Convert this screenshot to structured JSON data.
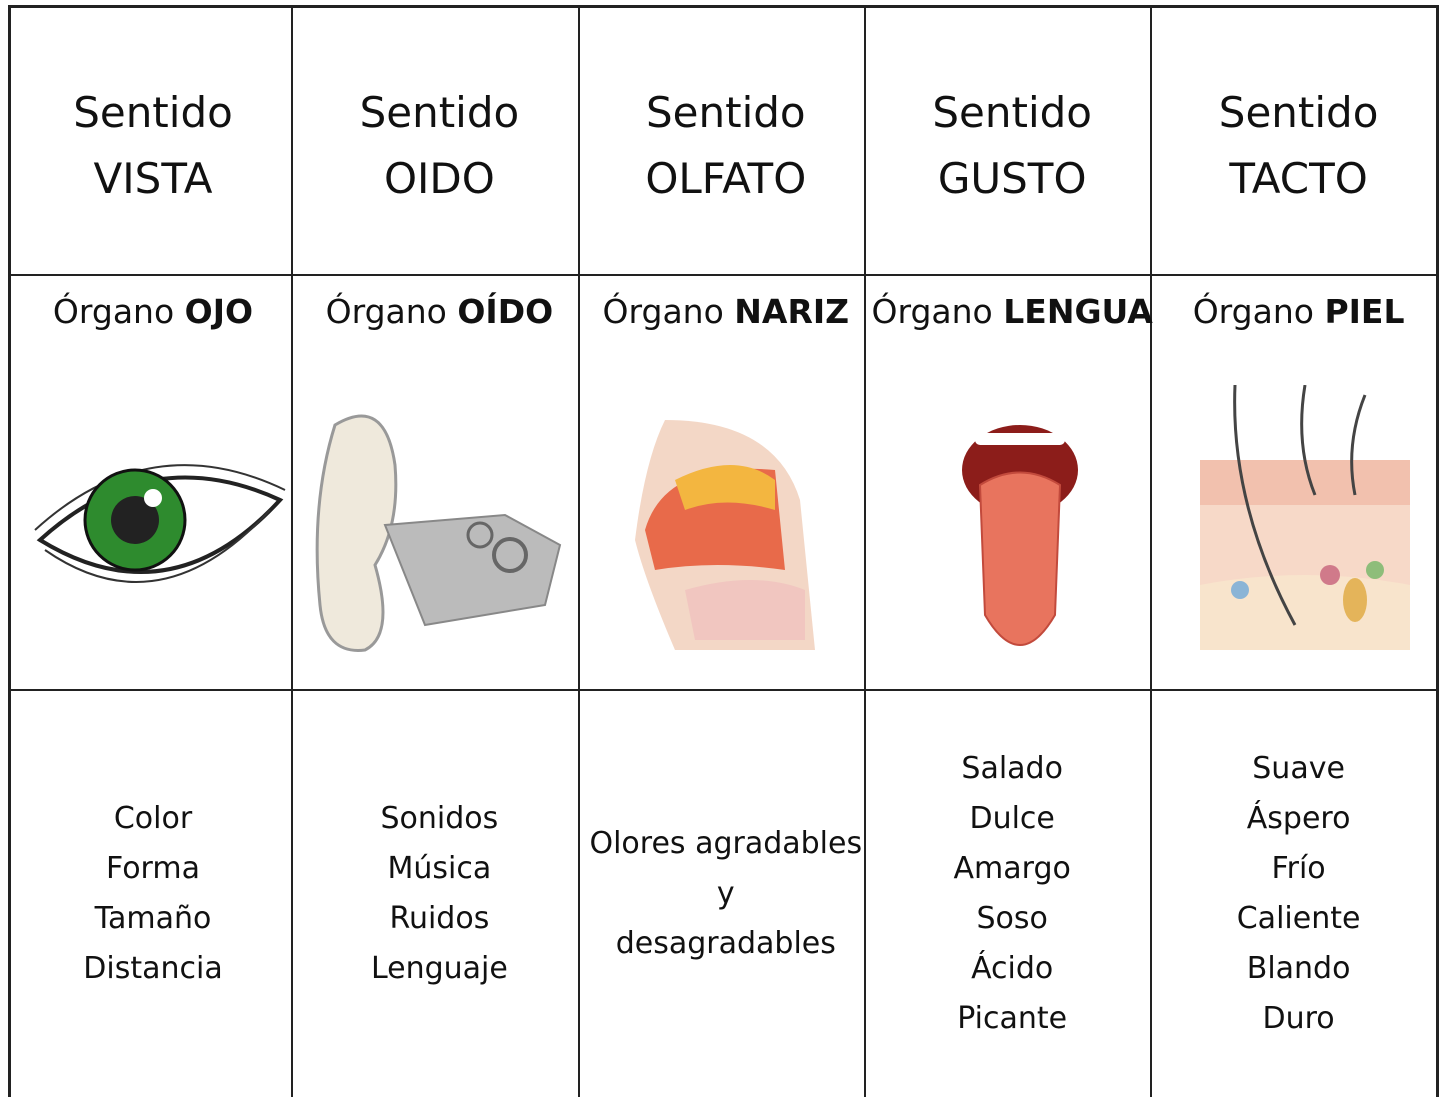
{
  "columns": [
    {
      "sense_label": "Sentido",
      "sense": "VISTA",
      "organ_label": "Órgano",
      "organ": "OJO",
      "items": [
        "Color",
        "Forma",
        "Tamaño",
        "Distancia"
      ]
    },
    {
      "sense_label": "Sentido",
      "sense": "OIDO",
      "organ_label": "Órgano",
      "organ": "OÍDO",
      "items": [
        "Sonidos",
        "Música",
        "Ruidos",
        "Lenguaje"
      ]
    },
    {
      "sense_label": "Sentido",
      "sense": "OLFATO",
      "organ_label": "Órgano",
      "organ": "NARIZ",
      "items": [
        "Olores agradables",
        "y",
        "desagradables"
      ]
    },
    {
      "sense_label": "Sentido",
      "sense": "GUSTO",
      "organ_label": "Órgano",
      "organ": "LENGUA",
      "items": [
        "Salado",
        "Dulce",
        "Amargo",
        "Soso",
        "Ácido",
        "Picante"
      ]
    },
    {
      "sense_label": "Sentido",
      "sense": "TACTO",
      "organ_label": "Órgano",
      "organ": "PIEL",
      "items": [
        "Suave",
        "Áspero",
        "Frío",
        "Caliente",
        "Blando",
        "Duro"
      ]
    }
  ]
}
